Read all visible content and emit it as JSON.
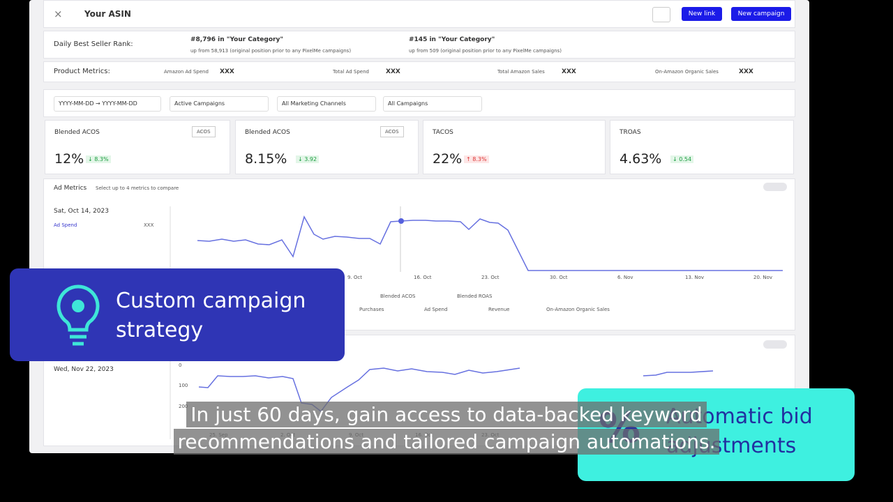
{
  "header": {
    "close": "×",
    "title": "Your ASIN",
    "buttons": [
      "New link",
      "New campaign"
    ]
  },
  "rank": {
    "label": "Daily Best Seller Rank:",
    "items": [
      {
        "rank": "#8,796 in \"Your Category\"",
        "note": "up from 58,913 (original position prior to any PixelMe campaigns)"
      },
      {
        "rank": "#145 in \"Your Category\"",
        "note": "up from 509 (original position prior to any PixelMe campaigns)"
      }
    ]
  },
  "metrics": {
    "label": "Product Metrics:",
    "items": [
      {
        "name": "Amazon Ad Spend",
        "value": "XXX"
      },
      {
        "name": "Total Ad Spend",
        "value": "XXX"
      },
      {
        "name": "Total Amazon Sales",
        "value": "XXX"
      },
      {
        "name": "On-Amazon Organic Sales",
        "value": "XXX"
      }
    ]
  },
  "filters": [
    "YYYY-MM-DD → YYYY-MM-DD",
    "Active Campaigns",
    "All Marketing Channels",
    "All Campaigns"
  ],
  "cards": [
    {
      "title": "Blended ACOS",
      "toggle": "ACOS",
      "value": "12%",
      "change": "↓ 8.3%"
    },
    {
      "title": "Blended ACOS",
      "toggle": "ACOS",
      "value": "8.15%",
      "change": "↓ 3.92"
    },
    {
      "title": "TACOS",
      "value": "22%",
      "change": "↑ 8.3%"
    },
    {
      "title": "TROAS",
      "value": "4.63%",
      "change": "↓ 0.54"
    }
  ],
  "ad_chart": {
    "title": "Ad Metrics",
    "hint": "Select up to 4 metrics to compare",
    "date": "Sat, Oct 14, 2023",
    "series_label": "Ad Spend",
    "series_value": "XXX",
    "x_labels": [
      "9. Oct",
      "16. Oct",
      "23. Oct",
      "30. Oct",
      "6. Nov",
      "13. Nov",
      "20. Nov"
    ],
    "legend": [
      "Blended ACOS",
      "Blended ROAS",
      "Purchases",
      "Ad Spend",
      "Revenue",
      "On-Amazon Organic Sales"
    ]
  },
  "chart2": {
    "date": "Wed, Nov 22, 2023",
    "y_labels": [
      "0",
      "100",
      "200"
    ],
    "x_labels": [
      "25. Sep",
      "2. Oct",
      "9. Oct",
      "16. Oct",
      "23. Oct"
    ]
  },
  "callouts": [
    "Custom campaign strategy",
    "Automatic bid adjustments"
  ],
  "caption": [
    "In just 60 days, gain access to data-backed keyword",
    "recommendations and tailored campaign automations."
  ]
}
